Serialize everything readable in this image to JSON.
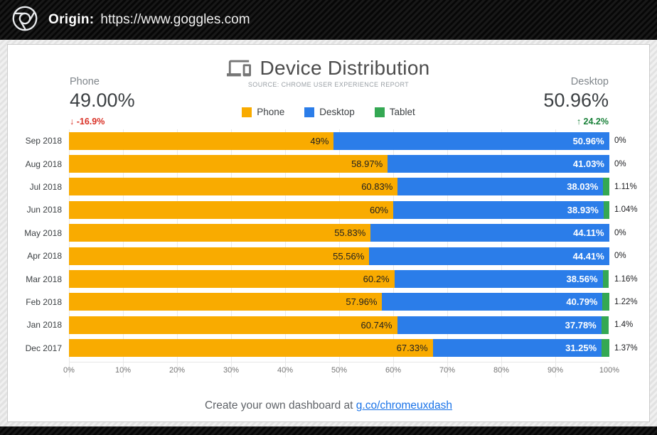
{
  "header": {
    "origin_label": "Origin:",
    "origin_url": "https://www.goggles.com",
    "logo_icon": "chrome-logo"
  },
  "card": {
    "title": "Device Distribution",
    "title_icon": "devices-icon",
    "subtitle": "SOURCE: CHROME USER EXPERIENCE REPORT",
    "stat_left": {
      "label": "Phone",
      "value": "49.00%",
      "delta_arrow": "↓",
      "delta": "-16.9%"
    },
    "stat_right": {
      "label": "Desktop",
      "value": "50.96%",
      "delta_arrow": "↑",
      "delta": "24.2%"
    },
    "footer": {
      "prefix": "Create your own dashboard at ",
      "link": "g.co/chromeuxdash"
    }
  },
  "theme": {
    "phone_color": "#F9AB00",
    "desktop_color": "#2B7DE9",
    "tablet_color": "#34A853",
    "negative_color": "#D93025",
    "positive_color": "#188038",
    "link_color": "#1A73E8"
  },
  "chart_data": {
    "type": "bar",
    "stacked": true,
    "orientation": "horizontal",
    "title": "Device Distribution",
    "subtitle": "SOURCE: CHROME USER EXPERIENCE REPORT",
    "legend_position": "top-center",
    "grid": true,
    "xlim": [
      0,
      100
    ],
    "categories": [
      "Sep 2018",
      "Aug 2018",
      "Jul 2018",
      "Jun 2018",
      "May 2018",
      "Apr 2018",
      "Mar 2018",
      "Feb 2018",
      "Jan 2018",
      "Dec 2017"
    ],
    "series": [
      {
        "name": "Phone",
        "color": "#F9AB00",
        "label_color": "#212121",
        "values": [
          49,
          58.97,
          60.83,
          60,
          55.83,
          55.56,
          60.2,
          57.96,
          60.74,
          67.33
        ],
        "labels": [
          "49%",
          "58.97%",
          "60.83%",
          "60%",
          "55.83%",
          "55.56%",
          "60.2%",
          "57.96%",
          "60.74%",
          "67.33%"
        ]
      },
      {
        "name": "Desktop",
        "color": "#2B7DE9",
        "label_color": "#FFFFFF",
        "label_bold": true,
        "values": [
          50.96,
          41.03,
          38.03,
          38.93,
          44.11,
          44.41,
          38.56,
          40.79,
          37.78,
          31.25
        ],
        "labels": [
          "50.96%",
          "41.03%",
          "38.03%",
          "38.93%",
          "44.11%",
          "44.41%",
          "38.56%",
          "40.79%",
          "37.78%",
          "31.25%"
        ]
      },
      {
        "name": "Tablet",
        "color": "#34A853",
        "labels_outside": true,
        "values": [
          0,
          0,
          1.11,
          1.04,
          0,
          0,
          1.16,
          1.22,
          1.4,
          1.37
        ],
        "labels": [
          "0%",
          "0%",
          "1.11%",
          "1.04%",
          "0%",
          "0%",
          "1.16%",
          "1.22%",
          "1.4%",
          "1.37%"
        ]
      }
    ],
    "x_ticks": [
      "0%",
      "10%",
      "20%",
      "30%",
      "40%",
      "50%",
      "60%",
      "70%",
      "80%",
      "90%",
      "100%"
    ]
  }
}
